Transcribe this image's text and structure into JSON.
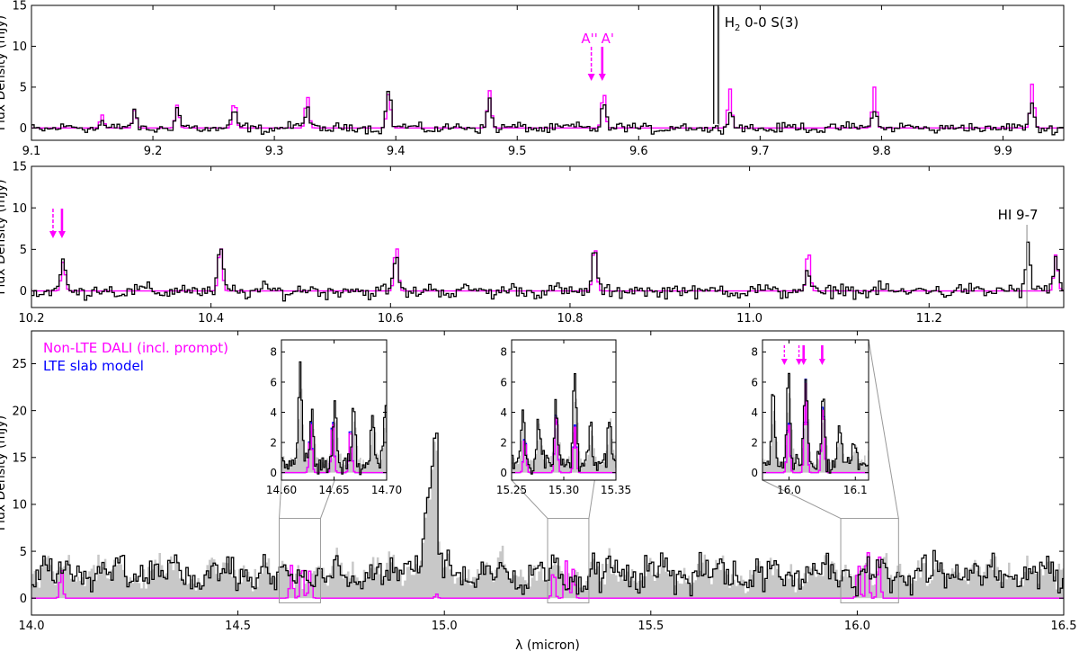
{
  "figure": {
    "panels": [
      {
        "id": "panel-1",
        "type": "line",
        "xlim": [
          9.1,
          9.95
        ],
        "ylim": [
          -1.5,
          15
        ],
        "xticks": [
          9.1,
          9.2,
          9.3,
          9.4,
          9.5,
          9.6,
          9.7,
          9.8,
          9.9
        ],
        "xtick_labels": [
          "9.1",
          "9.2",
          "9.3",
          "9.4",
          "9.5",
          "9.6",
          "9.7",
          "9.8",
          "9.9"
        ],
        "yticks": [
          0,
          5,
          10,
          15
        ],
        "ytick_labels": [
          "0",
          "5",
          "10",
          "15"
        ],
        "ylabel": "Flux Density (mJy)",
        "xlabel": "",
        "model_peaks": [
          9.157,
          9.184,
          9.219,
          9.266,
          9.326,
          9.393,
          9.476,
          9.57,
          9.674,
          9.793,
          9.923
        ],
        "model_heights": [
          1.6,
          2.2,
          2.8,
          3.3,
          4.0,
          4.2,
          4.6,
          4.5,
          4.8,
          5.0,
          5.4
        ],
        "obs_peaks": [
          9.157,
          9.184,
          9.219,
          9.266,
          9.326,
          9.393,
          9.476,
          9.57,
          9.674,
          9.793,
          9.923
        ],
        "obs_heights": [
          1.0,
          1.6,
          2.2,
          1.8,
          2.6,
          4.8,
          3.6,
          3.2,
          2.0,
          2.8,
          2.8
        ],
        "emission_line": {
          "x": 9.664,
          "height": 16,
          "label_main": "H",
          "label_sub": "2",
          "label_rest": " 0-0 S(3)"
        },
        "arrows": [
          {
            "x": 9.561,
            "style": "dashed",
            "label": "A''"
          },
          {
            "x": 9.57,
            "style": "solid",
            "label": "A'"
          }
        ]
      },
      {
        "id": "panel-2",
        "type": "line",
        "xlim": [
          10.2,
          11.35
        ],
        "ylim": [
          -2,
          15
        ],
        "xticks": [
          10.2,
          10.4,
          10.6,
          10.8,
          11.0,
          11.2
        ],
        "xtick_labels": [
          "10.2",
          "10.4",
          "10.6",
          "10.8",
          "11.0",
          "11.2"
        ],
        "yticks": [
          0,
          5,
          10,
          15
        ],
        "ytick_labels": [
          "0",
          "5",
          "10",
          "15"
        ],
        "ylabel": "Flux Density (mJy)",
        "xlabel": "",
        "model_peaks": [
          10.234,
          10.409,
          10.605,
          10.826,
          11.064,
          11.34
        ],
        "model_heights": [
          3.5,
          5.6,
          5.6,
          5.6,
          5.0,
          4.4
        ],
        "obs_peaks": [
          10.234,
          10.409,
          10.605,
          10.826,
          11.064,
          11.309,
          11.34
        ],
        "obs_heights": [
          3.3,
          5.0,
          3.8,
          4.6,
          2.0,
          5.5,
          4.0
        ],
        "emission_line": {
          "x": 11.309,
          "label": "HI 9-7"
        },
        "arrows": [
          {
            "x": 10.224,
            "style": "dashed",
            "label": ""
          },
          {
            "x": 10.234,
            "style": "solid",
            "label": ""
          }
        ]
      },
      {
        "id": "panel-3",
        "type": "line",
        "xlim": [
          14.0,
          16.5
        ],
        "ylim": [
          -1.8,
          28.5
        ],
        "xticks": [
          14.0,
          14.5,
          15.0,
          15.5,
          16.0,
          16.5
        ],
        "xtick_labels": [
          "14.0",
          "14.5",
          "15.0",
          "15.5",
          "16.0",
          "16.5"
        ],
        "yticks": [
          0,
          5,
          10,
          15,
          20,
          25
        ],
        "ytick_labels": [
          "0",
          "5",
          "10",
          "15",
          "20",
          "25"
        ],
        "ylabel": "Flux Density (mJy)",
        "xlabel": "λ (micron)",
        "co2_peak": {
          "x": 14.978,
          "height": 18.5
        },
        "model_peaks": [
          14.07,
          14.627,
          14.652,
          14.672,
          15.262,
          15.292,
          15.31,
          16.0,
          16.022,
          16.05
        ],
        "model_heights": [
          3.2,
          3.5,
          3.8,
          3.0,
          3.2,
          4.0,
          3.2,
          4.0,
          5.7,
          4.8
        ],
        "inset_boxes": [
          {
            "x0": 14.6,
            "x1": 14.7,
            "y0": -0.5,
            "y1": 8.5
          },
          {
            "x0": 15.25,
            "x1": 15.35,
            "y0": -0.5,
            "y1": 8.5
          },
          {
            "x0": 15.96,
            "x1": 16.1,
            "y0": -0.5,
            "y1": 8.5
          }
        ],
        "legend": [
          {
            "label": "Non-LTE DALI (incl. prompt)",
            "color": "#ff00ff"
          },
          {
            "label": "LTE slab model",
            "color": "#0000ff"
          }
        ]
      }
    ],
    "insets": [
      {
        "id": "inset-1",
        "xlim": [
          14.6,
          14.7
        ],
        "ylim": [
          -0.5,
          8.8
        ],
        "xticks": [
          14.6,
          14.65,
          14.7
        ],
        "xtick_labels": [
          "14.60",
          "14.65",
          "14.70"
        ],
        "yticks": [
          0,
          2,
          4,
          6,
          8
        ],
        "ytick_labels": [
          "0",
          "2",
          "4",
          "6",
          "8"
        ],
        "model_peaks": [
          14.627,
          14.648,
          14.665
        ],
        "model_heights": [
          3.2,
          3.5,
          3.0
        ],
        "obs_peaks": [
          14.617,
          14.628,
          14.65,
          14.668,
          14.686,
          14.698
        ],
        "obs_heights": [
          6.7,
          3.6,
          4.0,
          3.5,
          3.7,
          4.2
        ],
        "arrows": []
      },
      {
        "id": "inset-2",
        "xlim": [
          15.25,
          15.35
        ],
        "ylim": [
          -0.5,
          8.8
        ],
        "xticks": [
          15.25,
          15.3,
          15.35
        ],
        "xtick_labels": [
          "15.25",
          "15.30",
          "15.35"
        ],
        "yticks": [
          0,
          2,
          4,
          6,
          8
        ],
        "ytick_labels": [
          "0",
          "2",
          "4",
          "6",
          "8"
        ],
        "model_peaks": [
          15.262,
          15.292,
          15.31
        ],
        "model_heights": [
          2.3,
          4.0,
          3.0
        ],
        "obs_peaks": [
          15.26,
          15.275,
          15.292,
          15.31,
          15.325,
          15.343
        ],
        "obs_heights": [
          3.7,
          3.0,
          4.0,
          6.0,
          2.5,
          3.5
        ],
        "arrows": []
      },
      {
        "id": "inset-3",
        "xlim": [
          15.96,
          16.12
        ],
        "ylim": [
          -0.5,
          8.8
        ],
        "xticks": [
          16.0,
          16.1
        ],
        "xtick_labels": [
          "16.0",
          "16.1"
        ],
        "yticks": [
          0,
          2,
          4,
          6,
          8
        ],
        "ytick_labels": [
          "0",
          "2",
          "4",
          "6",
          "8"
        ],
        "model_peaks": [
          15.998,
          16.024,
          16.05
        ],
        "model_heights": [
          3.4,
          5.9,
          4.5
        ],
        "obs_peaks": [
          15.975,
          15.998,
          16.024,
          16.05,
          16.075,
          16.098
        ],
        "obs_heights": [
          4.8,
          6.0,
          6.0,
          4.5,
          2.5,
          1.5
        ],
        "arrows": [
          {
            "x": 15.993,
            "style": "dashed",
            "label": ""
          },
          {
            "x": 16.015,
            "style": "dashed",
            "label": ""
          },
          {
            "x": 16.022,
            "style": "solid",
            "label": ""
          },
          {
            "x": 16.05,
            "style": "solid",
            "label": ""
          }
        ]
      }
    ]
  }
}
